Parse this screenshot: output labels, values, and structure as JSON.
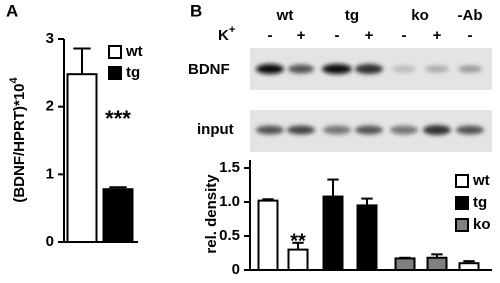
{
  "panels": {
    "a": "A",
    "b": "B"
  },
  "gel": {
    "row_label": "K",
    "row_label_sup": "+",
    "lanes": [
      "wt",
      "tg",
      "ko",
      "-Ab"
    ],
    "signs": [
      "-",
      "+",
      "-",
      "+",
      "-",
      "+",
      "-"
    ],
    "blot_1": "BDNF",
    "blot_2": "input"
  },
  "chart_data": [
    {
      "type": "bar",
      "ylabel": "(BDNF/HPRT)*10",
      "ylabel_sup": "4",
      "values": [
        2.48,
        0.78
      ],
      "errors": [
        0.38,
        0.03
      ],
      "colors": [
        "#ffffff",
        "#000000"
      ],
      "ylim": [
        0,
        3
      ],
      "yticks": [
        0,
        1,
        2,
        3
      ],
      "legend": [
        {
          "name": "wt",
          "color": "#ffffff"
        },
        {
          "name": "tg",
          "color": "#000000"
        }
      ],
      "annotation": "***"
    },
    {
      "type": "bar",
      "ylabel": "rel. density",
      "values": [
        1.02,
        0.3,
        1.08,
        0.95,
        0.17,
        0.18,
        0.1
      ],
      "errors": [
        0.02,
        0.1,
        0.25,
        0.1,
        0.01,
        0.05,
        0.03
      ],
      "colors": [
        "#ffffff",
        "#ffffff",
        "#000000",
        "#000000",
        "#808080",
        "#808080",
        "#ffffff"
      ],
      "ylim": [
        0,
        1.5
      ],
      "yticks": [
        0,
        0.5,
        {
          "value": 1,
          "label": "1.0"
        },
        1.5
      ],
      "legend": [
        {
          "name": "wt",
          "color": "#ffffff"
        },
        {
          "name": "tg",
          "color": "#000000"
        },
        {
          "name": "ko",
          "color": "#808080"
        }
      ],
      "annotation": "**"
    }
  ]
}
